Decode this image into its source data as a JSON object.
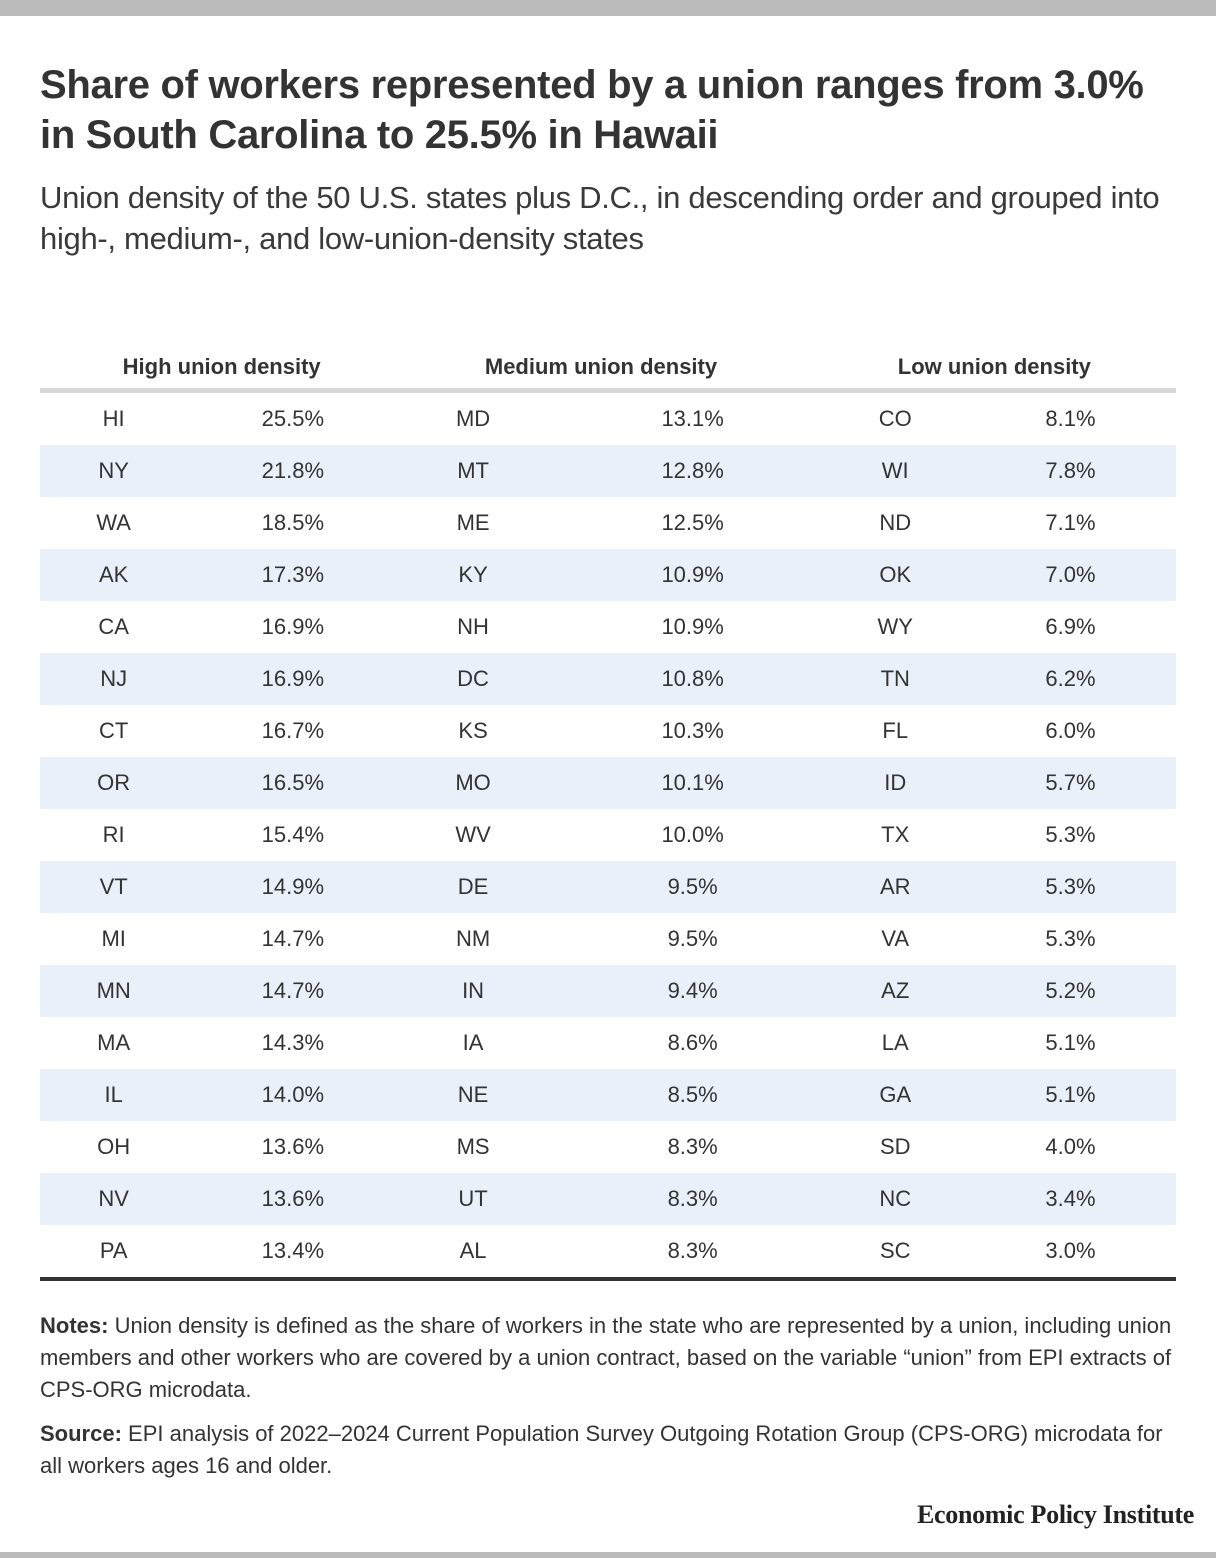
{
  "header": {
    "title": "Share of workers represented by a union ranges from 3.0% in South Carolina to 25.5% in Hawaii",
    "subtitle": "Union density of the 50 U.S. states plus D.C., in descending order and grouped into high-, medium-, and low-union-density states"
  },
  "table": {
    "groups": [
      {
        "heading": "High union density",
        "rows": [
          {
            "state": "HI",
            "value": "25.5%"
          },
          {
            "state": "NY",
            "value": "21.8%"
          },
          {
            "state": "WA",
            "value": "18.5%"
          },
          {
            "state": "AK",
            "value": "17.3%"
          },
          {
            "state": "CA",
            "value": "16.9%"
          },
          {
            "state": "NJ",
            "value": "16.9%"
          },
          {
            "state": "CT",
            "value": "16.7%"
          },
          {
            "state": "OR",
            "value": "16.5%"
          },
          {
            "state": "RI",
            "value": "15.4%"
          },
          {
            "state": "VT",
            "value": "14.9%"
          },
          {
            "state": "MI",
            "value": "14.7%"
          },
          {
            "state": "MN",
            "value": "14.7%"
          },
          {
            "state": "MA",
            "value": "14.3%"
          },
          {
            "state": "IL",
            "value": "14.0%"
          },
          {
            "state": "OH",
            "value": "13.6%"
          },
          {
            "state": "NV",
            "value": "13.6%"
          },
          {
            "state": "PA",
            "value": "13.4%"
          }
        ]
      },
      {
        "heading": "Medium union density",
        "rows": [
          {
            "state": "MD",
            "value": "13.1%"
          },
          {
            "state": "MT",
            "value": "12.8%"
          },
          {
            "state": "ME",
            "value": "12.5%"
          },
          {
            "state": "KY",
            "value": "10.9%"
          },
          {
            "state": "NH",
            "value": "10.9%"
          },
          {
            "state": "DC",
            "value": "10.8%"
          },
          {
            "state": "KS",
            "value": "10.3%"
          },
          {
            "state": "MO",
            "value": "10.1%"
          },
          {
            "state": "WV",
            "value": "10.0%"
          },
          {
            "state": "DE",
            "value": "9.5%"
          },
          {
            "state": "NM",
            "value": "9.5%"
          },
          {
            "state": "IN",
            "value": "9.4%"
          },
          {
            "state": "IA",
            "value": "8.6%"
          },
          {
            "state": "NE",
            "value": "8.5%"
          },
          {
            "state": "MS",
            "value": "8.3%"
          },
          {
            "state": "UT",
            "value": "8.3%"
          },
          {
            "state": "AL",
            "value": "8.3%"
          }
        ]
      },
      {
        "heading": "Low union density",
        "rows": [
          {
            "state": "CO",
            "value": "8.1%"
          },
          {
            "state": "WI",
            "value": "7.8%"
          },
          {
            "state": "ND",
            "value": "7.1%"
          },
          {
            "state": "OK",
            "value": "7.0%"
          },
          {
            "state": "WY",
            "value": "6.9%"
          },
          {
            "state": "TN",
            "value": "6.2%"
          },
          {
            "state": "FL",
            "value": "6.0%"
          },
          {
            "state": "ID",
            "value": "5.7%"
          },
          {
            "state": "TX",
            "value": "5.3%"
          },
          {
            "state": "AR",
            "value": "5.3%"
          },
          {
            "state": "VA",
            "value": "5.3%"
          },
          {
            "state": "AZ",
            "value": "5.2%"
          },
          {
            "state": "LA",
            "value": "5.1%"
          },
          {
            "state": "GA",
            "value": "5.1%"
          },
          {
            "state": "SD",
            "value": "4.0%"
          },
          {
            "state": "NC",
            "value": "3.4%"
          },
          {
            "state": "SC",
            "value": "3.0%"
          }
        ]
      }
    ]
  },
  "footer": {
    "notes_label": "Notes:",
    "notes_text": " Union density is defined as the share of workers in the state who are represented by a union, including union members and other workers who are covered by a union contract, based on the variable “union” from EPI extracts of CPS-ORG microdata.",
    "source_label": "Source:",
    "source_text": " EPI analysis of 2022–2024 Current Population Survey Outgoing Rotation Group (CPS-ORG) microdata for all workers ages 16 and older.",
    "brand": "Economic Policy Institute"
  },
  "colors": {
    "stripe": "#e9f0f9",
    "header_rule": "#d9d9d9",
    "bottom_rule": "#333333",
    "frame_bar": "#bbbbbb"
  }
}
